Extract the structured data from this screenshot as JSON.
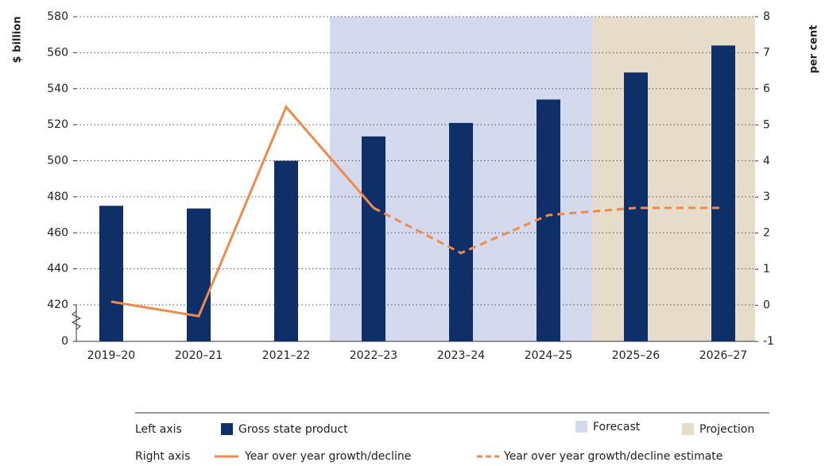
{
  "chart_data": {
    "type": "bar_line",
    "y_label": "$ billion",
    "y2_label": "per cent",
    "categories": [
      "2019–20",
      "2020–21",
      "2021–22",
      "2022–23",
      "2023–24",
      "2024–25",
      "2025–26",
      "2026–27"
    ],
    "series": [
      {
        "name": "Gross state product",
        "color": "#0f2f68",
        "type": "bar",
        "values": [
          475,
          473.5,
          500,
          513.5,
          521,
          534,
          549,
          564
        ]
      },
      {
        "name": "Year over year growth/decline",
        "color": "#f08a4b",
        "type": "line",
        "axis": "y2",
        "values": [
          0.1,
          -0.3,
          5.5,
          2.7,
          null,
          null,
          null,
          null
        ]
      },
      {
        "name": "Year over year growth/decline estimate",
        "color": "#f08a4b",
        "type": "line",
        "dashed": true,
        "axis": "y2",
        "values": [
          null,
          null,
          null,
          2.7,
          1.45,
          2.5,
          2.7,
          2.7
        ]
      }
    ],
    "regions": [
      {
        "name": "Forecast",
        "color": "#d5d9ee",
        "from": "2022–23",
        "to": "2024–25"
      },
      {
        "name": "Projection",
        "color": "#e7dcc9",
        "from": "2025–26",
        "to": "2026–27"
      }
    ],
    "ylim": [
      0,
      580
    ],
    "axis_break": true,
    "yticks": [
      0,
      420,
      440,
      460,
      480,
      500,
      520,
      540,
      560,
      580
    ],
    "y2lim": [
      -1,
      8
    ],
    "y2ticks": [
      -1,
      0,
      1,
      2,
      3,
      4,
      5,
      6,
      7,
      8
    ],
    "grid": true,
    "legend_groups": [
      "Left axis",
      "Right axis"
    ]
  }
}
